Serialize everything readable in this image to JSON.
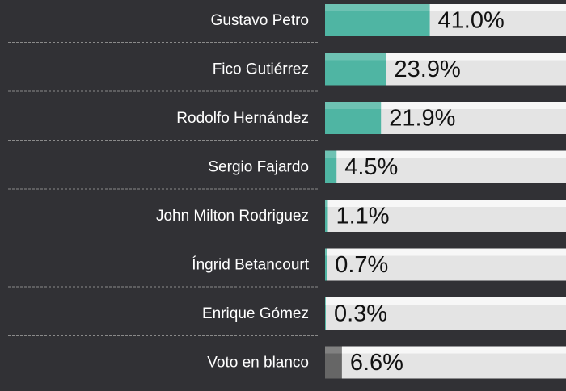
{
  "chart_data": {
    "type": "bar",
    "orientation": "horizontal",
    "categories": [
      "Gustavo Petro",
      "Fico Gutiérrez",
      "Rodolfo Hernández",
      "Sergio Fajardo",
      "John Milton Rodriguez",
      "Íngrid Betancourt",
      "Enrique Gómez",
      "Voto en blanco"
    ],
    "values": [
      41.0,
      23.9,
      21.9,
      4.5,
      1.1,
      0.7,
      0.3,
      6.6
    ],
    "value_labels": [
      "41.0%",
      "23.9%",
      "21.9%",
      "4.5%",
      "1.1%",
      "0.7%",
      "0.3%",
      "6.6%"
    ],
    "colors": [
      "#4fb5a3",
      "#4fb5a3",
      "#4fb5a3",
      "#4fb5a3",
      "#4fb5a3",
      "#4fb5a3",
      "#4fb5a3",
      "#666666"
    ],
    "xlim": [
      0,
      100
    ]
  }
}
